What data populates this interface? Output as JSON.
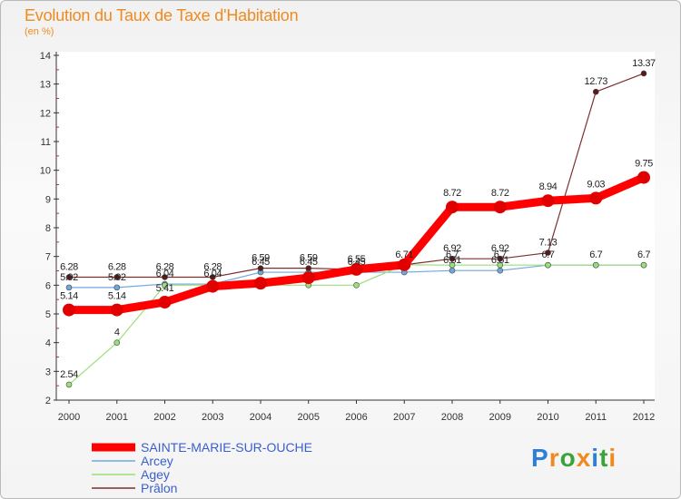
{
  "chart_data": {
    "type": "line",
    "title": "Evolution du Taux de Taxe d'Habitation",
    "subtitle": "(en %)",
    "x": [
      "2000",
      "2001",
      "2002",
      "2003",
      "2004",
      "2005",
      "2006",
      "2007",
      "2008",
      "2009",
      "2010",
      "2011",
      "2012"
    ],
    "ylim": [
      2,
      14
    ],
    "yticks": [
      2,
      3,
      4,
      5,
      6,
      7,
      8,
      9,
      10,
      11,
      12,
      13,
      14
    ],
    "series": [
      {
        "name": "SAINTE-MARIE-SUR-OUCHE",
        "color": "#ff0000",
        "values": [
          5.14,
          5.14,
          5.41,
          5.96,
          6.07,
          6.26,
          6.55,
          6.71,
          8.72,
          8.72,
          8.94,
          9.03,
          9.75
        ],
        "labels": [
          "5.14",
          "5.14",
          "5.41",
          "",
          "",
          "",
          "",
          "",
          "8.72",
          "8.72",
          "8.94",
          "9.03",
          "9.75"
        ]
      },
      {
        "name": "Arcey",
        "color": "#6fa8dc",
        "values": [
          5.92,
          5.92,
          6.04,
          6.04,
          6.45,
          6.45,
          6.45,
          6.45,
          6.51,
          6.51,
          6.7,
          6.7,
          6.7
        ],
        "labels": [
          "5.92",
          "5.92",
          "6.04",
          "6.04",
          "6.45",
          "6.45",
          "6.45",
          "",
          "6.51",
          "6.51",
          "",
          "",
          ""
        ]
      },
      {
        "name": "Agey",
        "color": "#99e07a",
        "values": [
          2.54,
          4,
          6,
          6,
          6,
          6,
          6,
          6.71,
          6.7,
          6.7,
          6.7,
          6.7,
          6.7
        ],
        "labels": [
          "2.54",
          "4",
          "",
          "",
          "",
          "",
          "",
          "",
          "6.7",
          "6.7",
          "6.7",
          "6.7",
          "6.7"
        ]
      },
      {
        "name": "Prâlon",
        "color": "#7b3030",
        "values": [
          6.28,
          6.28,
          6.28,
          6.28,
          6.59,
          6.59,
          6.55,
          6.71,
          6.92,
          6.92,
          7.13,
          12.73,
          13.37
        ],
        "labels": [
          "6.28",
          "6.28",
          "6.28",
          "6.28",
          "6.59",
          "6.59",
          "6.55",
          "6.71",
          "6.92",
          "6.92",
          "7.13",
          "12.73",
          "13.37"
        ]
      }
    ],
    "legend_position": "bottom-left"
  },
  "logo": {
    "letters": [
      "P",
      "r",
      "o",
      "x",
      "i",
      "t",
      "i"
    ],
    "colors": [
      "#2e7fd8",
      "#f08a1f",
      "#3aa33a",
      "#f08a1f",
      "#2e7fd8",
      "#3aa33a",
      "#f08a1f"
    ]
  }
}
